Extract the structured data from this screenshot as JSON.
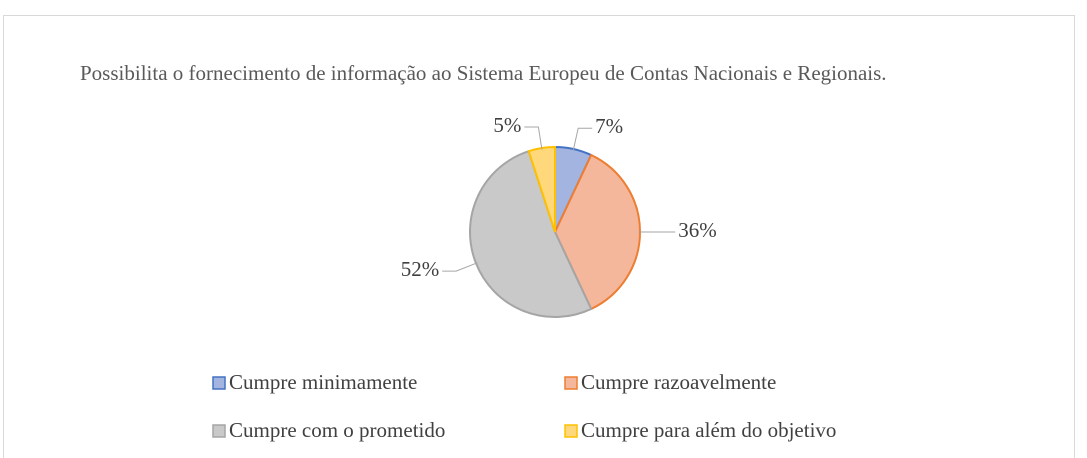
{
  "chart_data": {
    "type": "pie",
    "title": "Possibilita o fornecimento de informação ao Sistema Europeu de Contas Nacionais e Regionais.",
    "categories": [
      "Cumpre minimamente",
      "Cumpre razoavelmente",
      "Cumpre com o prometido",
      "Cumpre para além do objetivo"
    ],
    "values": [
      7,
      36,
      52,
      5
    ],
    "value_labels": [
      "7%",
      "36%",
      "52%",
      "5%"
    ],
    "colors": [
      "#a3b4e0",
      "#f5b79c",
      "#c9c9c9",
      "#ffd87c"
    ],
    "edgecolors": [
      "#4472c4",
      "#ed7d31",
      "#a5a5a5",
      "#ffc000"
    ],
    "legend": "bottom"
  }
}
